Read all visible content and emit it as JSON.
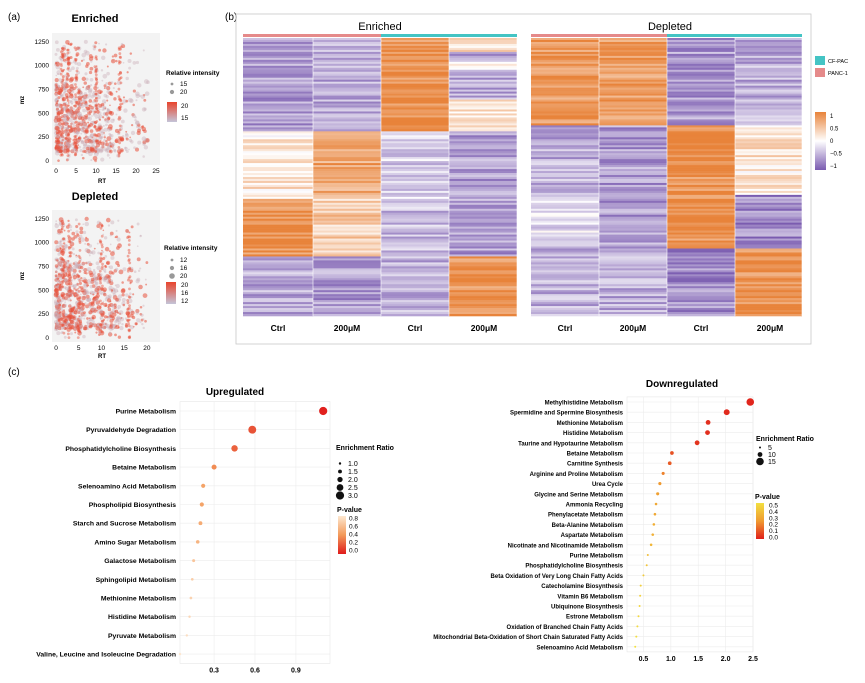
{
  "panel_labels": {
    "a": "(a)",
    "b": "(b)",
    "c": "(c)"
  },
  "scatter_enriched": {
    "title": "Enriched",
    "xlabel": "RT",
    "ylabel": "mz",
    "x_ticks": [
      "0",
      "5",
      "10",
      "15",
      "20",
      "25"
    ],
    "y_ticks": [
      "0",
      "250",
      "500",
      "750",
      "1000",
      "1250"
    ],
    "legend_title": "Relative intensity",
    "size_legend": [
      "15",
      "20"
    ],
    "color_legend": [
      "20",
      "15"
    ]
  },
  "scatter_depleted": {
    "title": "Depleted",
    "xlabel": "RT",
    "ylabel": "mz",
    "x_ticks": [
      "0",
      "5",
      "10",
      "15",
      "20"
    ],
    "y_ticks": [
      "0",
      "250",
      "500",
      "750",
      "1000",
      "1250"
    ],
    "legend_title": "Relative intensity",
    "size_legend": [
      "12",
      "16",
      "20"
    ],
    "color_legend": [
      "20",
      "16",
      "12"
    ]
  },
  "heatmap": {
    "enriched_title": "Enriched",
    "depleted_title": "Depleted",
    "columns": [
      "Ctrl",
      "200μM",
      "Ctrl",
      "200μM",
      "Ctrl",
      "200μM",
      "Ctrl",
      "200μM"
    ],
    "group_legend": [
      "CF-PAC",
      "PANC-1"
    ],
    "group_colors": {
      "CF-PAC": "#44c4c4",
      "PANC-1": "#e58a8a"
    },
    "scale_ticks": [
      "1",
      "0.5",
      "0",
      "−0.5",
      "−1"
    ],
    "scale_colors": {
      "high": "#e8833a",
      "mid": "#ffffff",
      "low": "#7a5bb0"
    }
  },
  "chart_data": [
    {
      "type": "scatter",
      "title": "Upregulated",
      "x_ticks": [
        "0.3",
        "0.6",
        "0.9"
      ],
      "size_legend_title": "Enrichment Ratio",
      "size_legend": [
        "1.0",
        "1.5",
        "2.0",
        "2.5",
        "3.0"
      ],
      "color_legend_title": "P-value",
      "color_legend": [
        "0.8",
        "0.6",
        "0.4",
        "0.2",
        "0.0"
      ],
      "points": [
        {
          "label": "Purine Metabolism",
          "x": 1.1,
          "size": 3.0,
          "p": 0.02
        },
        {
          "label": "Pyruvaldehyde Degradation",
          "x": 0.58,
          "size": 2.9,
          "p": 0.2
        },
        {
          "label": "Phosphatidylcholine Biosynthesis",
          "x": 0.45,
          "size": 2.4,
          "p": 0.25
        },
        {
          "label": "Betaine Metabolism",
          "x": 0.3,
          "size": 1.9,
          "p": 0.4
        },
        {
          "label": "Selenoamino Acid Metabolism",
          "x": 0.22,
          "size": 1.6,
          "p": 0.5
        },
        {
          "label": "Phospholipid Biosynthesis",
          "x": 0.21,
          "size": 1.6,
          "p": 0.5
        },
        {
          "label": "Starch and Sucrose Metabolism",
          "x": 0.2,
          "size": 1.5,
          "p": 0.55
        },
        {
          "label": "Amino Sugar Metabolism",
          "x": 0.18,
          "size": 1.4,
          "p": 0.6
        },
        {
          "label": "Galactose Metabolism",
          "x": 0.15,
          "size": 1.2,
          "p": 0.7
        },
        {
          "label": "Sphingolipid Metabolism",
          "x": 0.14,
          "size": 1.1,
          "p": 0.75
        },
        {
          "label": "Methionine Metabolism",
          "x": 0.13,
          "size": 1.1,
          "p": 0.78
        },
        {
          "label": "Histidine Metabolism",
          "x": 0.12,
          "size": 1.0,
          "p": 0.8
        },
        {
          "label": "Pyruvate Metabolism",
          "x": 0.1,
          "size": 1.0,
          "p": 0.85
        },
        {
          "label": "Valine, Leucine and Isoleucine Degradation",
          "x": 0.05,
          "size": 1.0,
          "p": 0.9
        }
      ]
    },
    {
      "type": "scatter",
      "title": "Downregulated",
      "x_ticks": [
        "0.5",
        "1.0",
        "1.5",
        "2.0",
        "2.5"
      ],
      "size_legend_title": "Enrichment Ratio",
      "size_legend": [
        "5",
        "10",
        "15"
      ],
      "color_legend_title": "P-value",
      "color_legend": [
        "0.5",
        "0.4",
        "0.3",
        "0.2",
        "0.1",
        "0.0"
      ],
      "points": [
        {
          "label": "Methylhistidine Metabolism",
          "x": 2.45,
          "size": 15,
          "p": 0.01
        },
        {
          "label": "Spermidine and Spermine Biosynthesis",
          "x": 2.02,
          "size": 12,
          "p": 0.02
        },
        {
          "label": "Methionine Metabolism",
          "x": 1.68,
          "size": 10,
          "p": 0.03
        },
        {
          "label": "Histidine Metabolism",
          "x": 1.67,
          "size": 10,
          "p": 0.03
        },
        {
          "label": "Taurine and Hypotaurine Metabolism",
          "x": 1.48,
          "size": 10,
          "p": 0.04
        },
        {
          "label": "Betaine Metabolism",
          "x": 1.02,
          "size": 8,
          "p": 0.1
        },
        {
          "label": "Carnitine Synthesis",
          "x": 0.98,
          "size": 8,
          "p": 0.12
        },
        {
          "label": "Arginine and Proline Metabolism",
          "x": 0.86,
          "size": 7,
          "p": 0.2
        },
        {
          "label": "Urea Cycle",
          "x": 0.8,
          "size": 7,
          "p": 0.25
        },
        {
          "label": "Glycine and Serine Metabolism",
          "x": 0.76,
          "size": 7,
          "p": 0.27
        },
        {
          "label": "Ammonia Recycling",
          "x": 0.73,
          "size": 6,
          "p": 0.3
        },
        {
          "label": "Phenylacetate Metabolism",
          "x": 0.71,
          "size": 6,
          "p": 0.3
        },
        {
          "label": "Beta-Alanine Metabolism",
          "x": 0.69,
          "size": 6,
          "p": 0.32
        },
        {
          "label": "Aspartate Metabolism",
          "x": 0.67,
          "size": 6,
          "p": 0.33
        },
        {
          "label": "Nicotinate and Nicotinamide Metabolism",
          "x": 0.64,
          "size": 6,
          "p": 0.35
        },
        {
          "label": "Purine Metabolism",
          "x": 0.58,
          "size": 5,
          "p": 0.38
        },
        {
          "label": "Phosphatidylcholine Biosynthesis",
          "x": 0.56,
          "size": 5,
          "p": 0.4
        },
        {
          "label": "Beta Oxidation of Very Long Chain Fatty Acids",
          "x": 0.5,
          "size": 5,
          "p": 0.42
        },
        {
          "label": "Catecholamine Biosynthesis",
          "x": 0.45,
          "size": 5,
          "p": 0.44
        },
        {
          "label": "Vitamin B6 Metabolism",
          "x": 0.44,
          "size": 5,
          "p": 0.45
        },
        {
          "label": "Ubiquinone Biosynthesis",
          "x": 0.43,
          "size": 5,
          "p": 0.46
        },
        {
          "label": "Estrone Metabolism",
          "x": 0.41,
          "size": 5,
          "p": 0.47
        },
        {
          "label": "Oxidation of Branched Chain Fatty Acids",
          "x": 0.39,
          "size": 5,
          "p": 0.48
        },
        {
          "label": "Mitochondrial Beta-Oxidation of Short Chain Saturated Fatty Acids",
          "x": 0.37,
          "size": 5,
          "p": 0.49
        },
        {
          "label": "Selenoamino Acid Metabolism",
          "x": 0.35,
          "size": 5,
          "p": 0.5
        }
      ]
    }
  ]
}
